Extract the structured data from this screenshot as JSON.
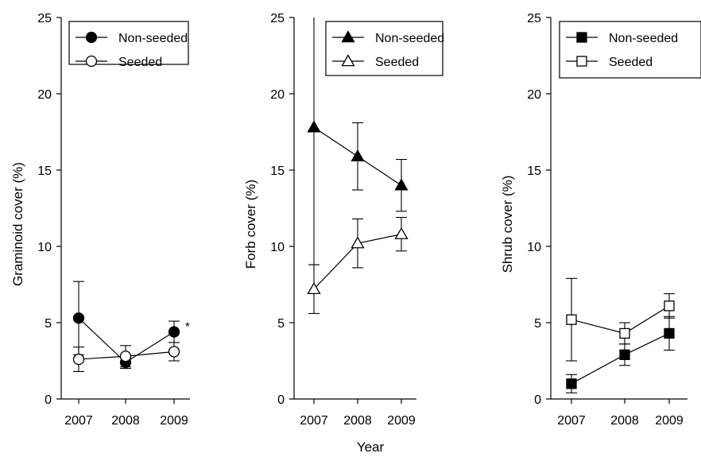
{
  "chart_data": [
    {
      "type": "line",
      "ylabel": "Graminoid cover (%)",
      "x": [
        "2007",
        "2008",
        "2009"
      ],
      "ylim": [
        0,
        25
      ],
      "yticks": [
        "0",
        "5",
        "10",
        "15",
        "20",
        "25"
      ],
      "legend_position": "top-right",
      "series": [
        {
          "name": "Non-seeded",
          "marker": "filled-circle",
          "values": [
            5.3,
            2.4,
            4.4
          ],
          "errors": [
            2.4,
            0.4,
            0.7
          ]
        },
        {
          "name": "Seeded",
          "marker": "open-circle",
          "values": [
            2.6,
            2.8,
            3.1
          ],
          "errors": [
            0.8,
            0.7,
            0.6
          ]
        }
      ],
      "annotations": [
        "*"
      ]
    },
    {
      "type": "line",
      "ylabel": "Forb cover (%)",
      "x": [
        "2007",
        "2008",
        "2009"
      ],
      "ylim": [
        0,
        25
      ],
      "yticks": [
        "0",
        "5",
        "10",
        "15",
        "20",
        "25"
      ],
      "legend_position": "top-right",
      "series": [
        {
          "name": "Non-seeded",
          "marker": "filled-triangle",
          "values": [
            17.8,
            15.9,
            14.0
          ],
          "errors": [
            9.0,
            2.2,
            1.7
          ]
        },
        {
          "name": "Seeded",
          "marker": "open-triangle",
          "values": [
            7.2,
            10.2,
            10.8
          ],
          "errors": [
            1.6,
            1.6,
            1.1
          ]
        }
      ]
    },
    {
      "type": "line",
      "ylabel": "Shrub cover (%)",
      "x": [
        "2007",
        "2008",
        "2009"
      ],
      "ylim": [
        0,
        25
      ],
      "yticks": [
        "0",
        "5",
        "10",
        "15",
        "20",
        "25"
      ],
      "legend_position": "top-right",
      "series": [
        {
          "name": "Non-seeded",
          "marker": "filled-square",
          "values": [
            1.0,
            2.9,
            4.3
          ],
          "errors": [
            0.6,
            0.7,
            1.1
          ]
        },
        {
          "name": "Seeded",
          "marker": "open-square",
          "values": [
            5.2,
            4.3,
            6.1
          ],
          "errors": [
            2.7,
            0.7,
            0.8
          ]
        }
      ]
    }
  ],
  "shared_xlabel": "Year"
}
